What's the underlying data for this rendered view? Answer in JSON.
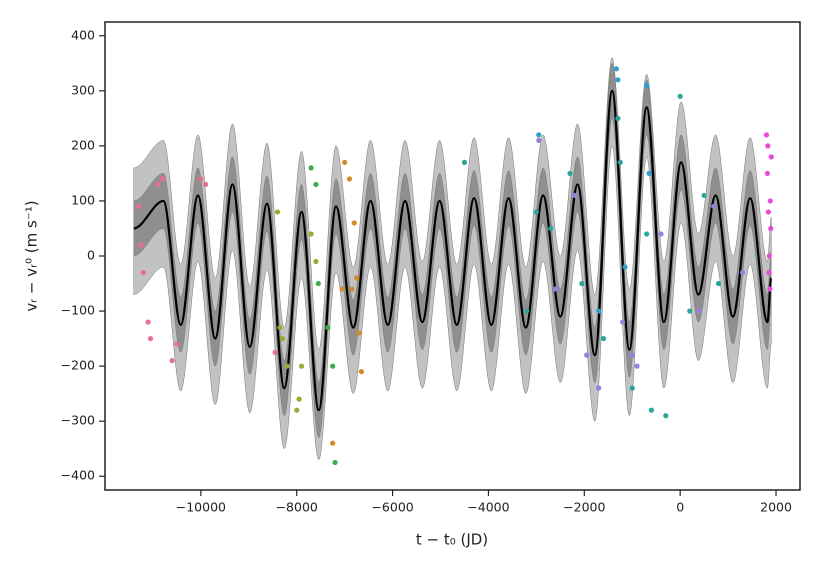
{
  "chart_data": {
    "type": "line",
    "x_label": "t − t₀ (JD)",
    "y_label": "vᵣ − vᵣ⁰ (m s⁻¹)",
    "xlim": [
      -12000,
      2500
    ],
    "ylim": [
      -425,
      425
    ],
    "xticks": [
      {
        "value": -10000,
        "label": "−10000"
      },
      {
        "value": -8000,
        "label": "−8000"
      },
      {
        "value": -6000,
        "label": "−6000"
      },
      {
        "value": -4000,
        "label": "−4000"
      },
      {
        "value": -2000,
        "label": "−2000"
      },
      0,
      2000
    ],
    "yticks": [
      {
        "value": -400,
        "label": "−400"
      },
      {
        "value": -300,
        "label": "−300"
      },
      {
        "value": -200,
        "label": "−200"
      },
      {
        "value": -100,
        "label": "−100"
      },
      0,
      100,
      200,
      300,
      400
    ],
    "x": [
      -11400,
      -10780,
      -10420,
      -10060,
      -9700,
      -9340,
      -8980,
      -8620,
      -8260,
      -7900,
      -7540,
      -7180,
      -6820,
      -6460,
      -6100,
      -5740,
      -5380,
      -5020,
      -4660,
      -4300,
      -3940,
      -3580,
      -3220,
      -2860,
      -2500,
      -2140,
      -1780,
      -1420,
      -1060,
      -700,
      -340,
      20,
      380,
      740,
      1100,
      1460,
      1820,
      1900
    ],
    "series": [
      {
        "color": "#000000",
        "values": [
          50,
          100,
          -125,
          110,
          -150,
          130,
          -165,
          95,
          -240,
          80,
          -280,
          90,
          -130,
          100,
          -125,
          100,
          -120,
          100,
          -125,
          105,
          -125,
          105,
          -130,
          110,
          -110,
          130,
          -180,
          300,
          -170,
          270,
          -120,
          170,
          -70,
          110,
          -110,
          105,
          -120,
          -40
        ]
      }
    ],
    "bands": [
      {
        "color": "#c2c2c2",
        "upper": [
          160,
          210,
          -15,
          220,
          -40,
          240,
          -55,
          205,
          -130,
          190,
          -170,
          200,
          -20,
          210,
          -15,
          210,
          -10,
          210,
          -15,
          215,
          -15,
          215,
          -20,
          220,
          0,
          240,
          -70,
          360,
          -60,
          330,
          -10,
          280,
          40,
          220,
          0,
          215,
          -10,
          70
        ],
        "lower": [
          -70,
          -20,
          -245,
          -10,
          -270,
          10,
          -285,
          -25,
          -350,
          -40,
          -370,
          -30,
          -250,
          -20,
          -245,
          -20,
          -240,
          -20,
          -245,
          -15,
          -245,
          -15,
          -250,
          -10,
          -230,
          10,
          -300,
          200,
          -290,
          180,
          -240,
          60,
          -190,
          -10,
          -230,
          -15,
          -240,
          -160
        ]
      },
      {
        "color": "#8f8f8f",
        "upper": [
          100,
          150,
          -75,
          160,
          -100,
          180,
          -115,
          145,
          -190,
          130,
          -230,
          140,
          -80,
          150,
          -75,
          150,
          -70,
          150,
          -75,
          155,
          -75,
          155,
          -80,
          160,
          -60,
          180,
          -130,
          350,
          -120,
          320,
          -70,
          220,
          -20,
          160,
          -60,
          155,
          -70,
          10
        ],
        "lower": [
          0,
          50,
          -175,
          60,
          -200,
          80,
          -215,
          45,
          -290,
          30,
          -330,
          40,
          -180,
          50,
          -175,
          50,
          -170,
          50,
          -175,
          55,
          -175,
          55,
          -180,
          60,
          -160,
          80,
          -230,
          250,
          -220,
          220,
          -170,
          120,
          -120,
          60,
          -160,
          55,
          -170,
          -90
        ]
      }
    ],
    "scatter": [
      {
        "color": "#e8708a",
        "x": [
          -11300,
          -11250,
          -11200,
          -11100,
          -11050,
          -10900,
          -10800,
          -10600,
          -10500,
          -10000,
          -9900,
          -8450
        ],
        "values": [
          90,
          20,
          -30,
          -120,
          -150,
          130,
          140,
          -190,
          -160,
          140,
          130,
          -175
        ]
      },
      {
        "color": "#a0a832",
        "x": [
          -8400,
          -8350,
          -8300,
          -8200,
          -8000,
          -7950,
          -7900,
          -7700,
          -7600
        ],
        "values": [
          80,
          -130,
          -150,
          -200,
          -280,
          -260,
          -200,
          40,
          -10
        ]
      },
      {
        "color": "#3dab4e",
        "x": [
          -7700,
          -7600,
          -7550,
          -7350,
          -7250,
          -7200
        ],
        "values": [
          160,
          130,
          -50,
          -130,
          -200,
          -375
        ]
      },
      {
        "color": "#d08a2b",
        "x": [
          -7250,
          -7050,
          -7000,
          -6900,
          -6850,
          -6800,
          -6750,
          -6700,
          -6650
        ],
        "values": [
          -340,
          -60,
          170,
          140,
          -60,
          60,
          -40,
          -140,
          -210
        ]
      },
      {
        "color": "#9b7ee0",
        "x": [
          -2950,
          -2600,
          -2200,
          -1950,
          -1700,
          -1200,
          -1000,
          -900,
          -400,
          400,
          700,
          1300
        ],
        "values": [
          210,
          -60,
          110,
          -180,
          -240,
          -120,
          -180,
          -200,
          40,
          -100,
          90,
          -30
        ]
      },
      {
        "color": "#2aa59a",
        "x": [
          -4500,
          -3200,
          -3000,
          -2700,
          -2300,
          -2050,
          -1600,
          -1300,
          -1250,
          -1000,
          -700,
          -600,
          -300,
          0,
          200,
          500,
          800
        ],
        "values": [
          170,
          -100,
          80,
          50,
          150,
          -50,
          -150,
          250,
          170,
          -240,
          40,
          -280,
          -290,
          290,
          -100,
          110,
          -50
        ]
      },
      {
        "color": "#2fa0d0",
        "x": [
          -2950,
          -1700,
          -1330,
          -1300,
          -1150,
          -700,
          -650
        ],
        "values": [
          220,
          -100,
          340,
          320,
          -20,
          310,
          150
        ]
      },
      {
        "color": "#e84bd8",
        "x": [
          1800,
          1820,
          1830,
          1840,
          1850,
          1860,
          1870,
          1880,
          1890,
          1900
        ],
        "values": [
          220,
          150,
          200,
          80,
          -30,
          0,
          -60,
          100,
          50,
          180
        ]
      }
    ]
  }
}
